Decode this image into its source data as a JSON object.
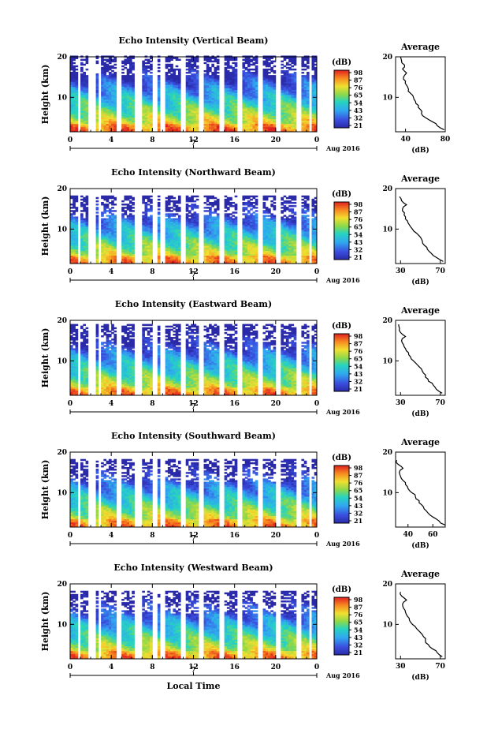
{
  "chart_data": [
    {
      "type": "heatmap",
      "title": "Echo Intensity (Vertical Beam)",
      "ylabel": "Height (km)",
      "xlabel": "",
      "x_ticks": [
        "0",
        "4",
        "8",
        "12",
        "16",
        "20",
        "0"
      ],
      "x_range": [
        0,
        24
      ],
      "y_ticks": [
        "20",
        "10"
      ],
      "ylim": [
        1.5,
        20
      ],
      "date_tick": "7",
      "date_label": "Aug 2016",
      "colorbar_unit": "(dB)",
      "colorbar_ticks": [
        "98",
        "87",
        "76",
        "65",
        "54",
        "43",
        "32",
        "21"
      ],
      "colorbar_range": [
        21,
        98
      ],
      "data_top_km": 20,
      "profile": {
        "title": "Average",
        "xlabel": "(dB)",
        "x_ticks": [
          "40",
          "80"
        ],
        "xlim": [
          30,
          80
        ],
        "heights": [
          2,
          3,
          4,
          5,
          6,
          7,
          8,
          9,
          10,
          11,
          12,
          13,
          14,
          15,
          16,
          17,
          18,
          19,
          20
        ],
        "values": [
          79,
          72,
          67,
          60,
          56,
          55,
          53,
          50,
          48,
          45,
          43,
          41,
          40,
          38,
          41,
          37,
          39,
          36,
          35
        ]
      }
    },
    {
      "type": "heatmap",
      "title": "Echo Intensity (Northward Beam)",
      "ylabel": "Height (km)",
      "xlabel": "",
      "x_ticks": [
        "0",
        "4",
        "8",
        "12",
        "16",
        "20",
        "0"
      ],
      "x_range": [
        0,
        24
      ],
      "y_ticks": [
        "20",
        "10"
      ],
      "ylim": [
        1.5,
        20
      ],
      "date_tick": "7",
      "date_label": "Aug 2016",
      "colorbar_unit": "(dB)",
      "colorbar_ticks": [
        "98",
        "87",
        "76",
        "65",
        "54",
        "43",
        "32",
        "21"
      ],
      "colorbar_range": [
        21,
        98
      ],
      "data_top_km": 18,
      "profile": {
        "title": "Average",
        "xlabel": "(dB)",
        "x_ticks": [
          "30",
          "70"
        ],
        "xlim": [
          25,
          75
        ],
        "heights": [
          2,
          3,
          4,
          5,
          6,
          7,
          8,
          9,
          10,
          11,
          12,
          13,
          14,
          15,
          16,
          17,
          18
        ],
        "values": [
          73,
          66,
          61,
          57,
          54,
          52,
          50,
          46,
          42,
          39,
          37,
          35,
          34,
          32,
          36,
          31,
          29
        ]
      }
    },
    {
      "type": "heatmap",
      "title": "Echo Intensity (Eastward Beam)",
      "ylabel": "Height (km)",
      "xlabel": "",
      "x_ticks": [
        "0",
        "4",
        "8",
        "12",
        "16",
        "20",
        "0"
      ],
      "x_range": [
        0,
        24
      ],
      "y_ticks": [
        "20",
        "10"
      ],
      "ylim": [
        1.5,
        20
      ],
      "date_tick": "7",
      "date_label": "Aug 2016",
      "colorbar_unit": "(dB)",
      "colorbar_ticks": [
        "98",
        "87",
        "76",
        "65",
        "54",
        "43",
        "32",
        "21"
      ],
      "colorbar_range": [
        21,
        98
      ],
      "data_top_km": 19,
      "profile": {
        "title": "Average",
        "xlabel": "(dB)",
        "x_ticks": [
          "30",
          "70"
        ],
        "xlim": [
          25,
          75
        ],
        "heights": [
          2,
          3,
          4,
          5,
          6,
          7,
          8,
          9,
          10,
          11,
          12,
          13,
          14,
          15,
          16,
          17,
          18,
          19
        ],
        "values": [
          72,
          66,
          63,
          58,
          55,
          53,
          51,
          47,
          43,
          40,
          38,
          35,
          33,
          31,
          35,
          30,
          29,
          28
        ]
      }
    },
    {
      "type": "heatmap",
      "title": "Echo Intensity (Southward Beam)",
      "ylabel": "Height (km)",
      "xlabel": "",
      "x_ticks": [
        "0",
        "4",
        "8",
        "12",
        "16",
        "20",
        "0"
      ],
      "x_range": [
        0,
        24
      ],
      "y_ticks": [
        "20",
        "10"
      ],
      "ylim": [
        1.5,
        20
      ],
      "date_tick": "7",
      "date_label": "Aug 2016",
      "colorbar_unit": "(dB)",
      "colorbar_ticks": [
        "98",
        "87",
        "76",
        "65",
        "54",
        "43",
        "32",
        "21"
      ],
      "colorbar_range": [
        21,
        98
      ],
      "data_top_km": 18,
      "profile": {
        "title": "Average",
        "xlabel": "(dB)",
        "x_ticks": [
          "40",
          "60"
        ],
        "xlim": [
          30,
          70
        ],
        "heights": [
          2,
          3,
          4,
          5,
          6,
          7,
          8,
          9,
          10,
          11,
          12,
          13,
          14,
          15,
          16,
          17,
          18
        ],
        "values": [
          70,
          65,
          60,
          56,
          53,
          51,
          49,
          46,
          43,
          40,
          38,
          36,
          34,
          33,
          36,
          32,
          31
        ]
      }
    },
    {
      "type": "heatmap",
      "title": "Echo Intensity (Westward Beam)",
      "ylabel": "Height (km)",
      "xlabel": "Local Time",
      "x_ticks": [
        "0",
        "4",
        "8",
        "12",
        "16",
        "20",
        "0"
      ],
      "x_range": [
        0,
        24
      ],
      "y_ticks": [
        "20",
        "10"
      ],
      "ylim": [
        1.5,
        20
      ],
      "date_tick": "7",
      "date_label": "Aug 2016",
      "colorbar_unit": "(dB)",
      "colorbar_ticks": [
        "98",
        "87",
        "76",
        "65",
        "54",
        "43",
        "32",
        "21"
      ],
      "colorbar_range": [
        21,
        98
      ],
      "data_top_km": 18,
      "profile": {
        "title": "Average",
        "xlabel": "(dB)",
        "x_ticks": [
          "30",
          "70"
        ],
        "xlim": [
          25,
          75
        ],
        "heights": [
          2,
          3,
          4,
          5,
          6,
          7,
          8,
          9,
          10,
          11,
          12,
          13,
          14,
          15,
          16,
          17,
          18
        ],
        "values": [
          72,
          67,
          62,
          58,
          55,
          53,
          50,
          46,
          42,
          39,
          37,
          35,
          33,
          32,
          36,
          31,
          30
        ]
      }
    }
  ]
}
